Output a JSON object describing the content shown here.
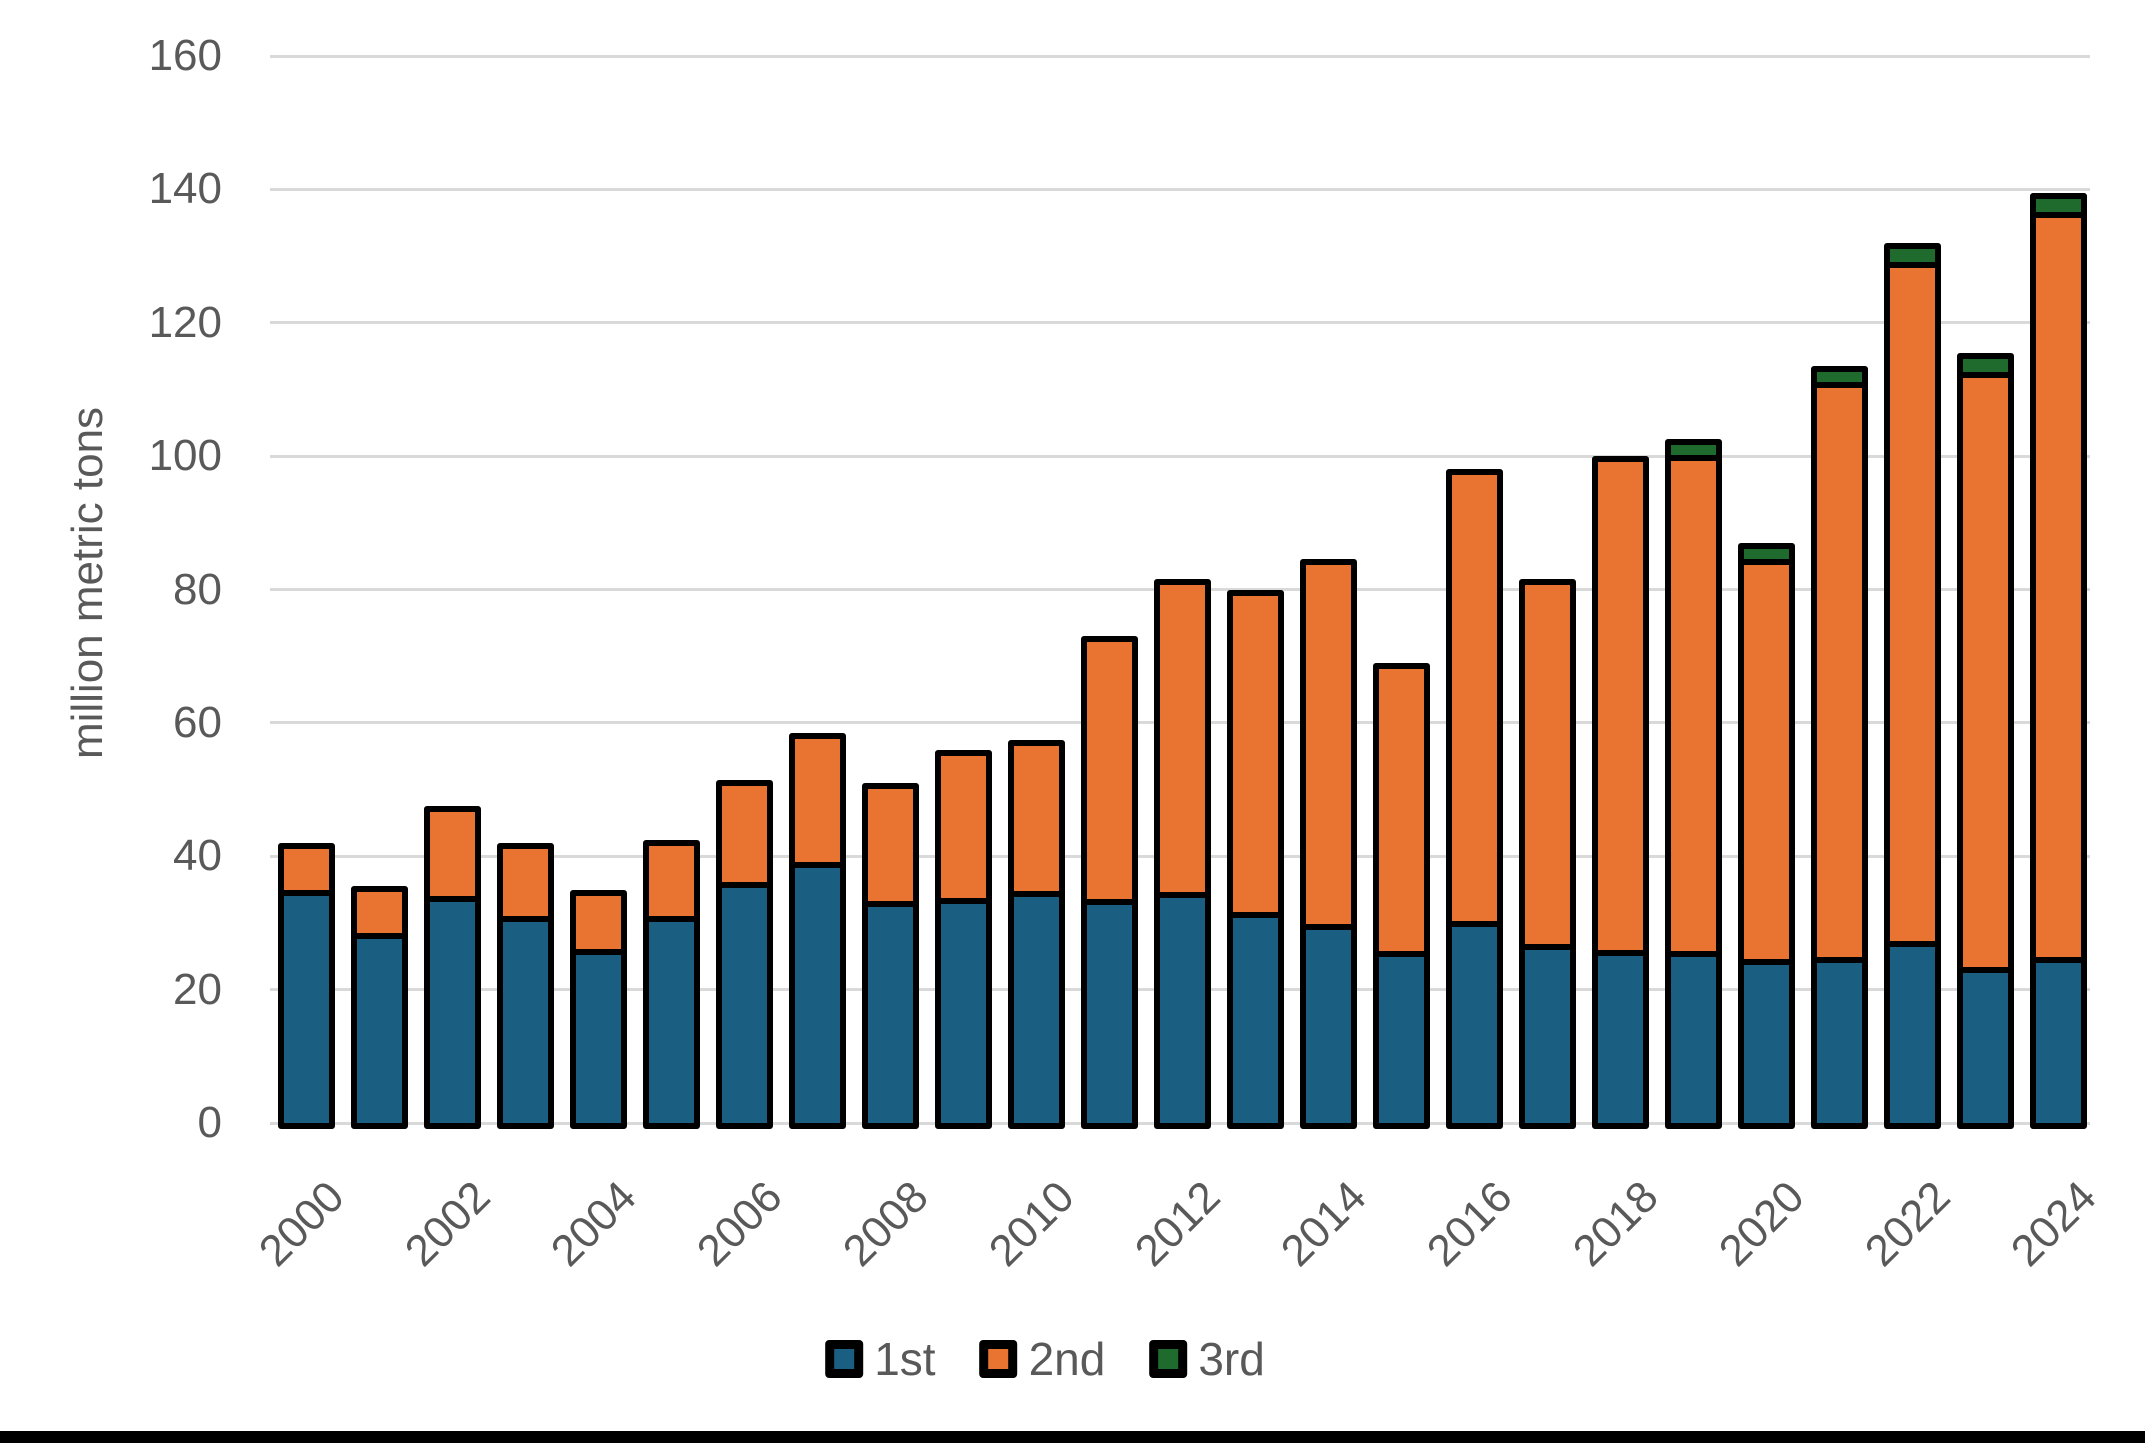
{
  "figure": {
    "y_axis_title": "million metric tons",
    "background_color": "#ffffff",
    "bottom_bar_color": "#000000"
  },
  "legend": [
    {
      "label": "1st",
      "color": "#1A5F81"
    },
    {
      "label": "2nd",
      "color": "#E97331"
    },
    {
      "label": "3rd",
      "color": "#1E6B2D"
    }
  ],
  "chart_data": {
    "type": "bar",
    "stacked": true,
    "title": "",
    "xlabel": "",
    "ylabel": "million metric tons",
    "ylim": [
      0,
      160
    ],
    "yticks": [
      0,
      20,
      40,
      60,
      80,
      100,
      120,
      140,
      160
    ],
    "grid": true,
    "legend_position": "bottom",
    "categories": [
      2000,
      2001,
      2002,
      2003,
      2004,
      2005,
      2006,
      2007,
      2008,
      2009,
      2010,
      2011,
      2012,
      2013,
      2014,
      2015,
      2016,
      2017,
      2018,
      2019,
      2020,
      2021,
      2022,
      2023,
      2024
    ],
    "xtick_labels": [
      "2000",
      "2002",
      "2004",
      "2006",
      "2008",
      "2010",
      "2012",
      "2014",
      "2016",
      "2018",
      "2020",
      "2022",
      "2024"
    ],
    "series": [
      {
        "name": "1st",
        "color": "#1A5F81",
        "values": [
          35.5,
          29,
          34.5,
          31.5,
          26.5,
          31.5,
          36.5,
          39.5,
          33.5,
          34,
          35,
          33.5,
          34.5,
          31.5,
          29.5,
          25.5,
          30,
          26.5,
          25.5,
          25.5,
          24.5,
          24.5,
          27,
          23,
          24.5
        ]
      },
      {
        "name": "2nd",
        "color": "#E97331",
        "values": [
          6.5,
          6.5,
          13,
          10.5,
          8.5,
          11,
          15,
          19,
          17.5,
          22,
          22.5,
          39.5,
          47,
          48.5,
          55,
          43.5,
          68,
          55,
          74.5,
          75.5,
          61,
          87.5,
          103,
          90.5,
          113
        ]
      },
      {
        "name": "3rd",
        "color": "#1E6B2D",
        "values": [
          0,
          0,
          0,
          0,
          0,
          0,
          0,
          0,
          0,
          0,
          0,
          0,
          0,
          0,
          0,
          0,
          0,
          0,
          0,
          1.5,
          1.5,
          1.5,
          2,
          2,
          2
        ]
      }
    ],
    "totals": [
      42,
      35.5,
      47.5,
      42,
      35,
      42.5,
      51.5,
      58.5,
      51,
      56,
      57.5,
      73,
      81.5,
      80,
      84.5,
      69,
      98,
      81.5,
      100,
      102.5,
      87,
      113.5,
      132,
      115.5,
      139.5
    ],
    "gridline_color": "#D9D9D9",
    "axis_text_color": "#595959",
    "bar_border_color": "#000000"
  }
}
